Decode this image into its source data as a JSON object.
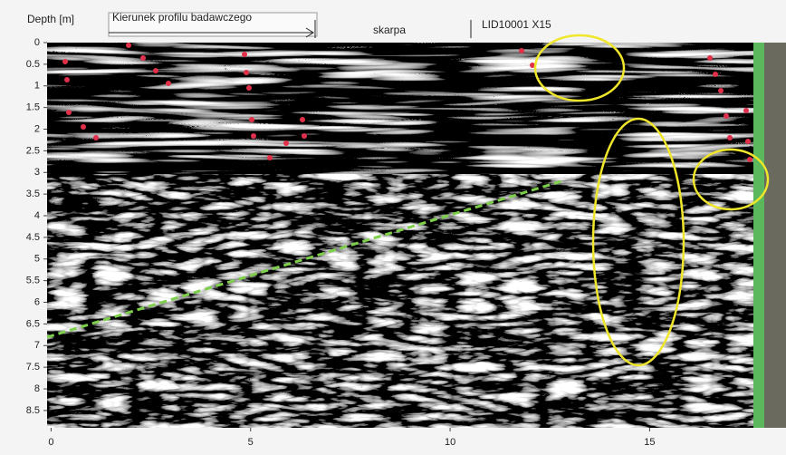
{
  "chart_data": {
    "type": "radargram",
    "ylabel": "Depth [m]",
    "annotations": [
      "Kierunek profilu badawczego",
      "skarpa",
      "LID10001 X15"
    ],
    "xlim": [
      -0.1,
      17.6
    ],
    "xticks": [
      0,
      5,
      10,
      15
    ],
    "ylim": [
      0,
      8.9
    ],
    "yticks": [
      0,
      0.5,
      1,
      1.5,
      2,
      2.5,
      3,
      3.5,
      4,
      4.5,
      5,
      5.5,
      6,
      6.5,
      7,
      7.5,
      8,
      8.5
    ]
  }
}
